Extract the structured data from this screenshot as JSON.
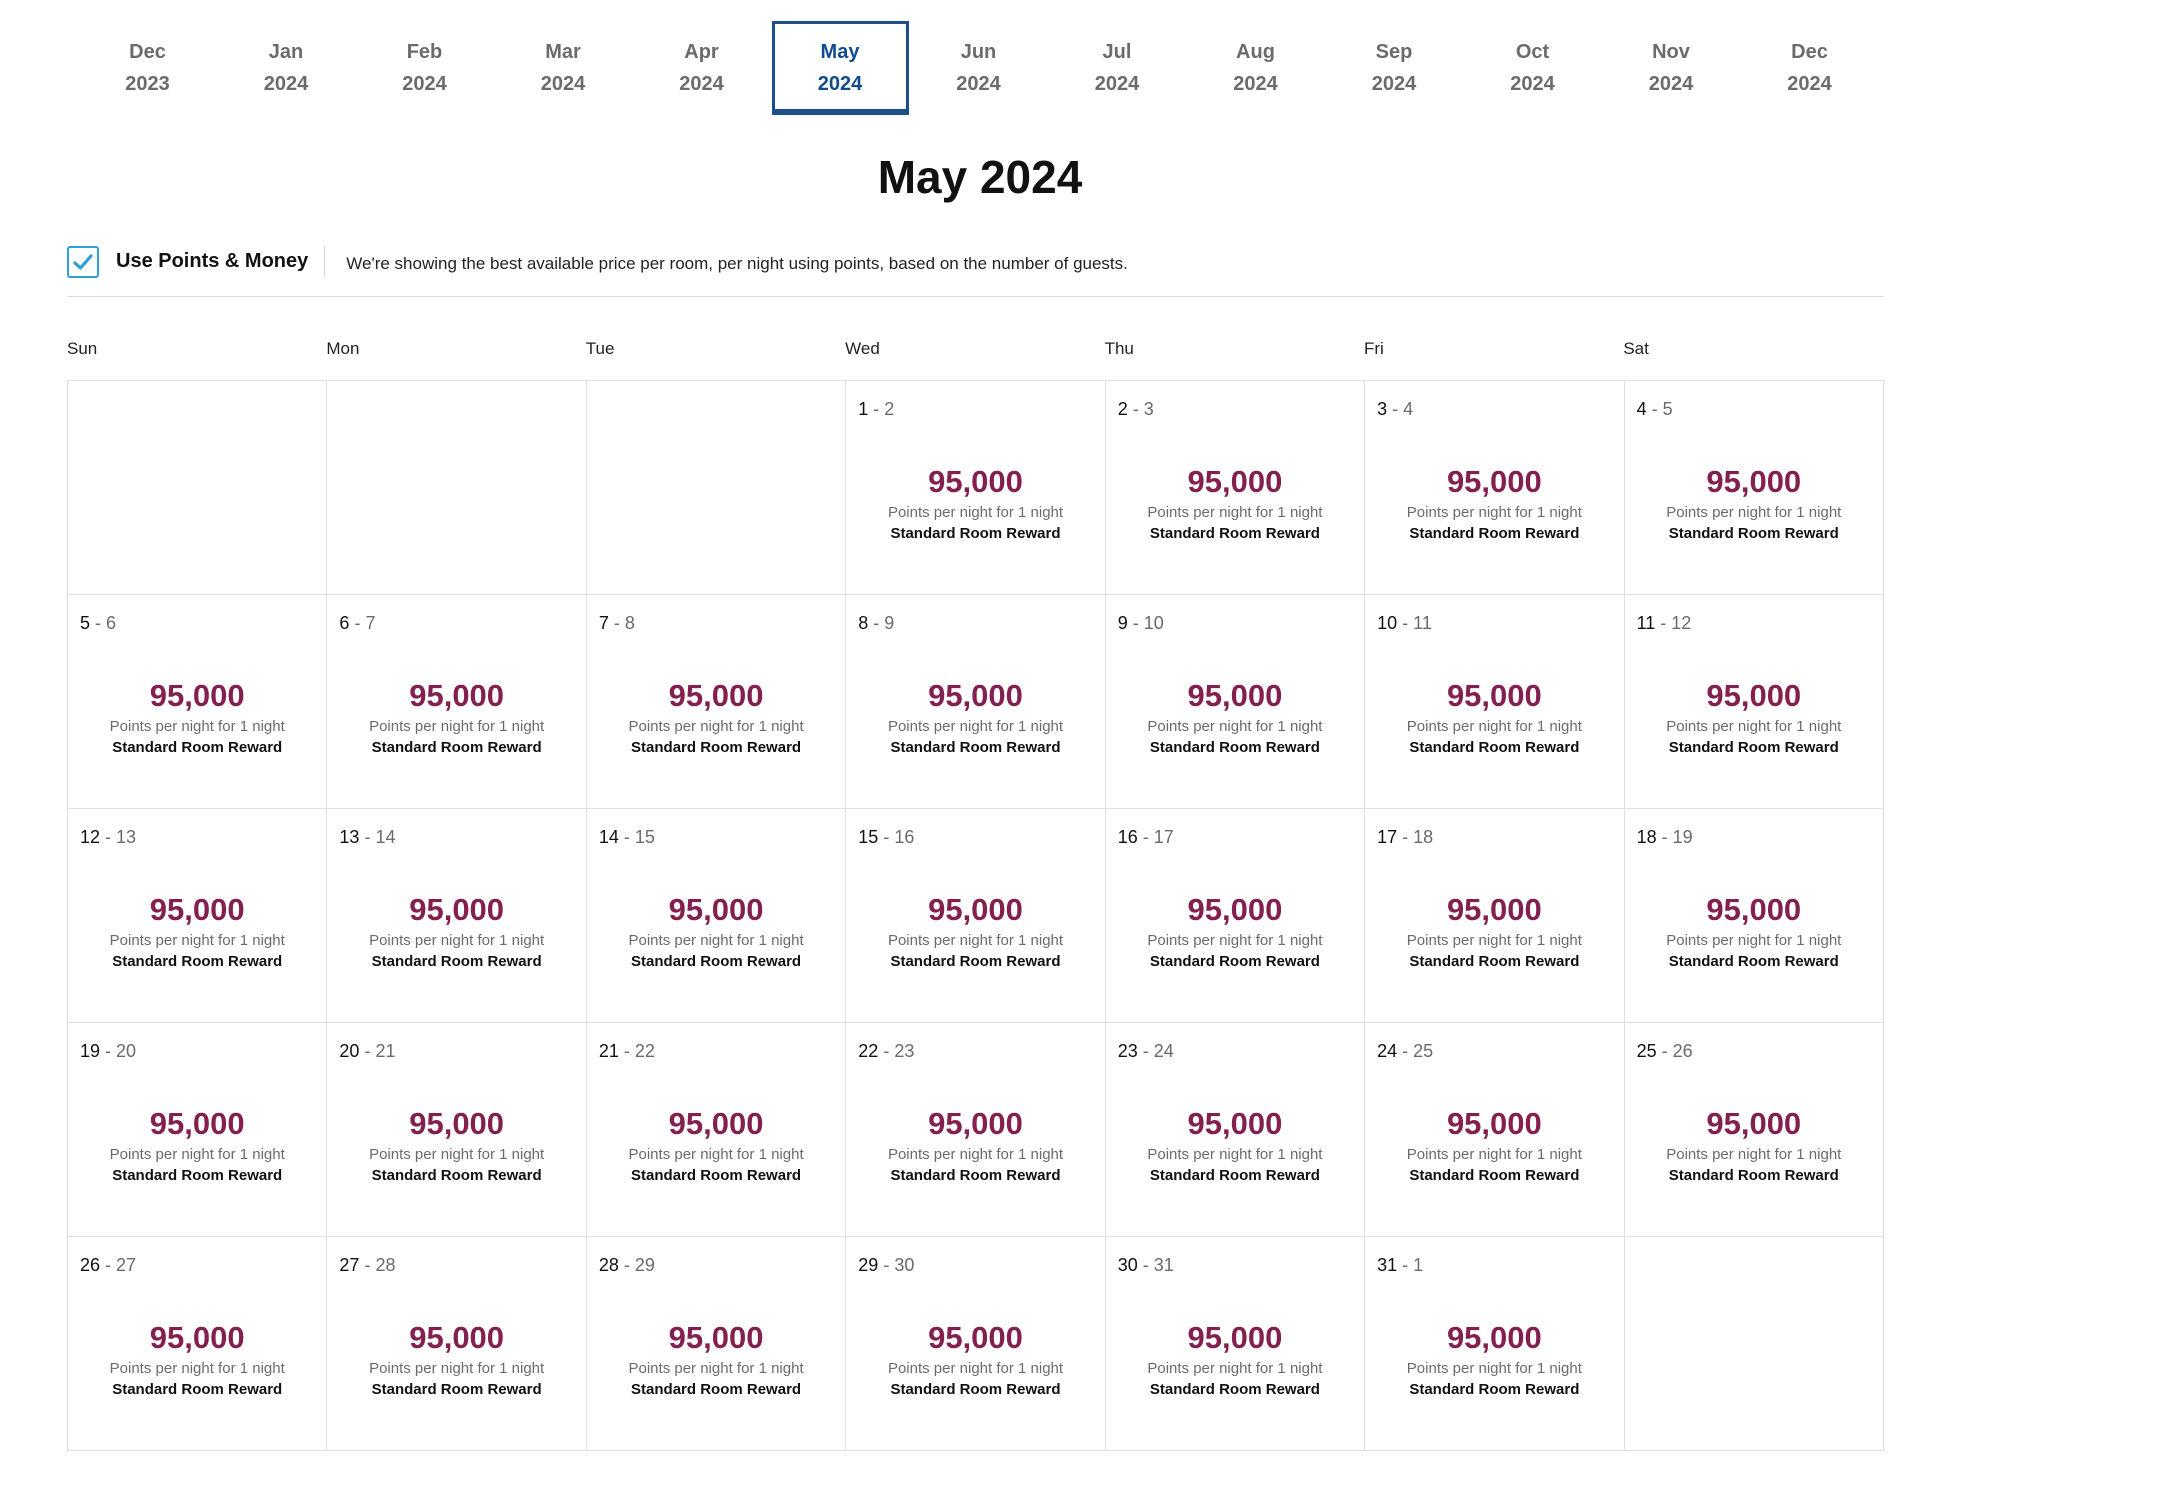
{
  "months": [
    {
      "month": "Dec",
      "year": "2023",
      "active": false
    },
    {
      "month": "Jan",
      "year": "2024",
      "active": false
    },
    {
      "month": "Feb",
      "year": "2024",
      "active": false
    },
    {
      "month": "Mar",
      "year": "2024",
      "active": false
    },
    {
      "month": "Apr",
      "year": "2024",
      "active": false
    },
    {
      "month": "May",
      "year": "2024",
      "active": true
    },
    {
      "month": "Jun",
      "year": "2024",
      "active": false
    },
    {
      "month": "Jul",
      "year": "2024",
      "active": false
    },
    {
      "month": "Aug",
      "year": "2024",
      "active": false
    },
    {
      "month": "Sep",
      "year": "2024",
      "active": false
    },
    {
      "month": "Oct",
      "year": "2024",
      "active": false
    },
    {
      "month": "Nov",
      "year": "2024",
      "active": false
    },
    {
      "month": "Dec",
      "year": "2024",
      "active": false
    }
  ],
  "title": "May 2024",
  "options": {
    "checkbox_label": "Use Points & Money",
    "checked": true,
    "note": "We're showing the best available price per room, per night using points, based on the number of guests."
  },
  "weekdays": [
    "Sun",
    "Mon",
    "Tue",
    "Wed",
    "Thu",
    "Fri",
    "Sat"
  ],
  "rate_defaults": {
    "points": "95,000",
    "points_label": "Points per night for 1 night",
    "room_type": "Standard Room Reward"
  },
  "cells": [
    null,
    null,
    null,
    {
      "start": "1",
      "end": "2"
    },
    {
      "start": "2",
      "end": "3"
    },
    {
      "start": "3",
      "end": "4"
    },
    {
      "start": "4",
      "end": "5"
    },
    {
      "start": "5",
      "end": "6"
    },
    {
      "start": "6",
      "end": "7"
    },
    {
      "start": "7",
      "end": "8"
    },
    {
      "start": "8",
      "end": "9"
    },
    {
      "start": "9",
      "end": "10"
    },
    {
      "start": "10",
      "end": "11"
    },
    {
      "start": "11",
      "end": "12"
    },
    {
      "start": "12",
      "end": "13"
    },
    {
      "start": "13",
      "end": "14"
    },
    {
      "start": "14",
      "end": "15"
    },
    {
      "start": "15",
      "end": "16"
    },
    {
      "start": "16",
      "end": "17"
    },
    {
      "start": "17",
      "end": "18"
    },
    {
      "start": "18",
      "end": "19"
    },
    {
      "start": "19",
      "end": "20"
    },
    {
      "start": "20",
      "end": "21"
    },
    {
      "start": "21",
      "end": "22"
    },
    {
      "start": "22",
      "end": "23"
    },
    {
      "start": "23",
      "end": "24"
    },
    {
      "start": "24",
      "end": "25"
    },
    {
      "start": "25",
      "end": "26"
    },
    {
      "start": "26",
      "end": "27"
    },
    {
      "start": "27",
      "end": "28"
    },
    {
      "start": "28",
      "end": "29"
    },
    {
      "start": "29",
      "end": "30"
    },
    {
      "start": "30",
      "end": "31"
    },
    {
      "start": "31",
      "end": "1"
    },
    null
  ],
  "colors": {
    "accent": "#114b8f",
    "points": "#84204f",
    "checkbox": "#2e9fd8"
  }
}
